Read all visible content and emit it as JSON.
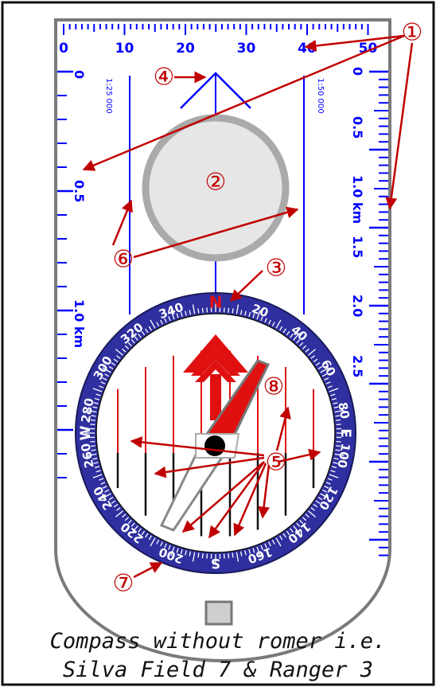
{
  "colors": {
    "ink": "#0000ff",
    "bezel": "#2f2fa0",
    "arrow": "#c00000",
    "needle": "#e01010",
    "plate": "#777777",
    "lens": "#e6e6e6"
  },
  "top_ruler": {
    "labels": [
      "0",
      "10",
      "20",
      "30",
      "40",
      "50"
    ]
  },
  "scale_25000": {
    "ratio": "1:25 000",
    "labels": [
      "0",
      "0.5",
      "1.0 km"
    ]
  },
  "scale_50000": {
    "ratio": "1:50 000",
    "labels": [
      "0",
      "0.5",
      "1.0 km",
      "1.5",
      "2.0",
      "2.5"
    ]
  },
  "bezel": {
    "north": "N",
    "south": "S",
    "east": "E",
    "west": "W",
    "degree_labels": [
      "20",
      "40",
      "60",
      "80",
      "100",
      "120",
      "140",
      "160",
      "200",
      "220",
      "240",
      "260",
      "280",
      "300",
      "320",
      "340"
    ]
  },
  "callouts": [
    "①",
    "②",
    "③",
    "④",
    "⑤",
    "⑥",
    "⑦",
    "⑧"
  ],
  "caption": {
    "line1": "Compass without romer i.e.",
    "line2": "Silva Field 7 & Ranger 3"
  }
}
